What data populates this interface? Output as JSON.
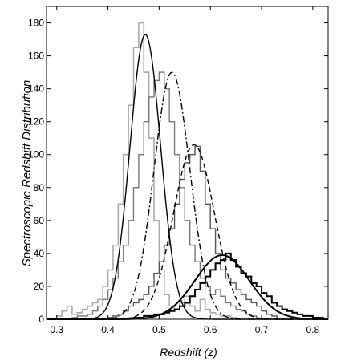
{
  "chart_data": {
    "type": "line",
    "title": "",
    "xlabel": "Redshift (z)",
    "ylabel": "Spectroscopic Redshift Distribution",
    "xlim": [
      0.28,
      0.83
    ],
    "ylim": [
      0,
      190
    ],
    "xticks": [
      0.3,
      0.4,
      0.5,
      0.6,
      0.7,
      0.8
    ],
    "yticks": [
      0,
      20,
      40,
      60,
      80,
      100,
      120,
      140,
      160,
      180
    ],
    "grid": false,
    "legend": "none",
    "histograms": [
      {
        "color": "#aaaaaa",
        "width": 1.6,
        "bin_width": 0.01,
        "bin_starts": [
          0.3,
          0.31,
          0.32,
          0.33,
          0.34,
          0.35,
          0.36,
          0.37,
          0.38,
          0.39,
          0.4,
          0.41,
          0.42,
          0.43,
          0.44,
          0.45,
          0.46,
          0.47,
          0.48,
          0.49,
          0.5,
          0.51,
          0.52,
          0.53,
          0.54,
          0.55,
          0.56,
          0.57,
          0.58,
          0.59,
          0.6,
          0.61,
          0.62,
          0.63,
          0.64,
          0.65
        ],
        "counts": [
          2,
          5,
          8,
          3,
          4,
          6,
          8,
          10,
          12,
          20,
          30,
          45,
          70,
          100,
          130,
          165,
          180,
          150,
          110,
          60,
          30,
          15,
          8,
          6,
          10,
          14,
          8,
          5,
          12,
          6,
          4,
          3,
          2,
          2,
          1,
          0
        ]
      },
      {
        "color": "#777777",
        "width": 1.4,
        "bin_width": 0.01,
        "bin_starts": [
          0.33,
          0.34,
          0.35,
          0.36,
          0.37,
          0.38,
          0.39,
          0.4,
          0.41,
          0.42,
          0.43,
          0.44,
          0.45,
          0.46,
          0.47,
          0.48,
          0.49,
          0.5,
          0.51,
          0.52,
          0.53,
          0.54,
          0.55,
          0.56,
          0.57,
          0.58,
          0.59,
          0.6,
          0.61,
          0.62,
          0.63,
          0.64,
          0.65,
          0.66,
          0.67,
          0.68
        ],
        "counts": [
          1,
          2,
          2,
          3,
          5,
          8,
          12,
          18,
          25,
          35,
          45,
          60,
          80,
          100,
          120,
          135,
          145,
          150,
          140,
          120,
          100,
          80,
          60,
          45,
          35,
          25,
          20,
          15,
          18,
          14,
          10,
          8,
          6,
          5,
          3,
          2
        ]
      },
      {
        "color": "#555555",
        "width": 1.4,
        "bin_width": 0.01,
        "bin_starts": [
          0.4,
          0.41,
          0.42,
          0.43,
          0.44,
          0.45,
          0.46,
          0.47,
          0.48,
          0.49,
          0.5,
          0.51,
          0.52,
          0.53,
          0.54,
          0.55,
          0.56,
          0.57,
          0.58,
          0.59,
          0.6,
          0.61,
          0.62,
          0.63,
          0.64,
          0.65,
          0.66,
          0.67,
          0.68,
          0.69,
          0.7,
          0.71,
          0.72
        ],
        "counts": [
          1,
          2,
          3,
          5,
          8,
          10,
          12,
          15,
          20,
          28,
          35,
          45,
          55,
          70,
          85,
          95,
          100,
          105,
          90,
          70,
          55,
          40,
          30,
          25,
          22,
          18,
          15,
          12,
          10,
          8,
          5,
          3,
          2
        ]
      },
      {
        "color": "#000000",
        "width": 2.0,
        "bin_width": 0.01,
        "bin_starts": [
          0.45,
          0.46,
          0.47,
          0.48,
          0.49,
          0.5,
          0.51,
          0.52,
          0.53,
          0.54,
          0.55,
          0.56,
          0.57,
          0.58,
          0.59,
          0.6,
          0.61,
          0.62,
          0.63,
          0.64,
          0.65,
          0.66,
          0.67,
          0.68,
          0.69,
          0.7,
          0.71,
          0.72,
          0.73,
          0.74,
          0.75,
          0.76,
          0.77,
          0.78,
          0.79,
          0.8,
          0.81
        ],
        "counts": [
          1,
          1,
          2,
          2,
          3,
          3,
          4,
          5,
          6,
          8,
          10,
          14,
          18,
          22,
          26,
          30,
          34,
          36,
          40,
          36,
          32,
          28,
          26,
          22,
          20,
          16,
          14,
          10,
          8,
          6,
          5,
          4,
          3,
          2,
          2,
          1,
          1
        ]
      }
    ],
    "fit_curves": [
      {
        "style": "solid",
        "color": "#000000",
        "width": 1.4,
        "mean": 0.473,
        "sigma": 0.03,
        "peak": 173
      },
      {
        "style": "dashdot",
        "color": "#000000",
        "width": 1.4,
        "mean": 0.525,
        "sigma": 0.035,
        "peak": 150
      },
      {
        "style": "dashed",
        "color": "#000000",
        "width": 1.4,
        "mean": 0.568,
        "sigma": 0.04,
        "peak": 106
      },
      {
        "style": "solid-bold",
        "color": "#000000",
        "width": 2.0,
        "mean": 0.623,
        "sigma": 0.053,
        "peak": 39
      }
    ]
  }
}
